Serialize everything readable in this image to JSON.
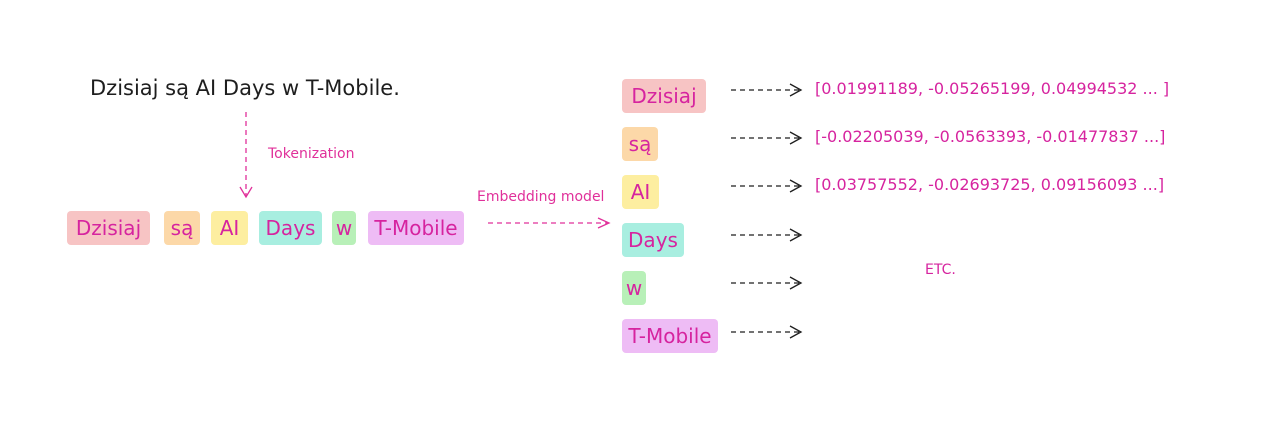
{
  "sentence": "Dzisiaj są AI Days w T-Mobile.",
  "step1_label": "Tokenization",
  "step2_label": "Embedding model",
  "tokens": [
    "Dzisiaj",
    "są",
    "AI",
    "Days",
    "w",
    "T-Mobile"
  ],
  "token_colors": [
    "#f7c4c4",
    "#fcd8a8",
    "#fdeea0",
    "#a8eee0",
    "#b8f0b8",
    "#eebcf5"
  ],
  "vectors": [
    "[0.01991189, -0.05265199, 0.04994532 ... ]",
    "[-0.02205039, -0.0563393, -0.01477837 ...]",
    "[0.03757552, -0.02693725, 0.09156093 ...]"
  ],
  "etc_label": "ETC.",
  "colors": {
    "accent": "#d6249f",
    "text": "#1e1e1e"
  }
}
